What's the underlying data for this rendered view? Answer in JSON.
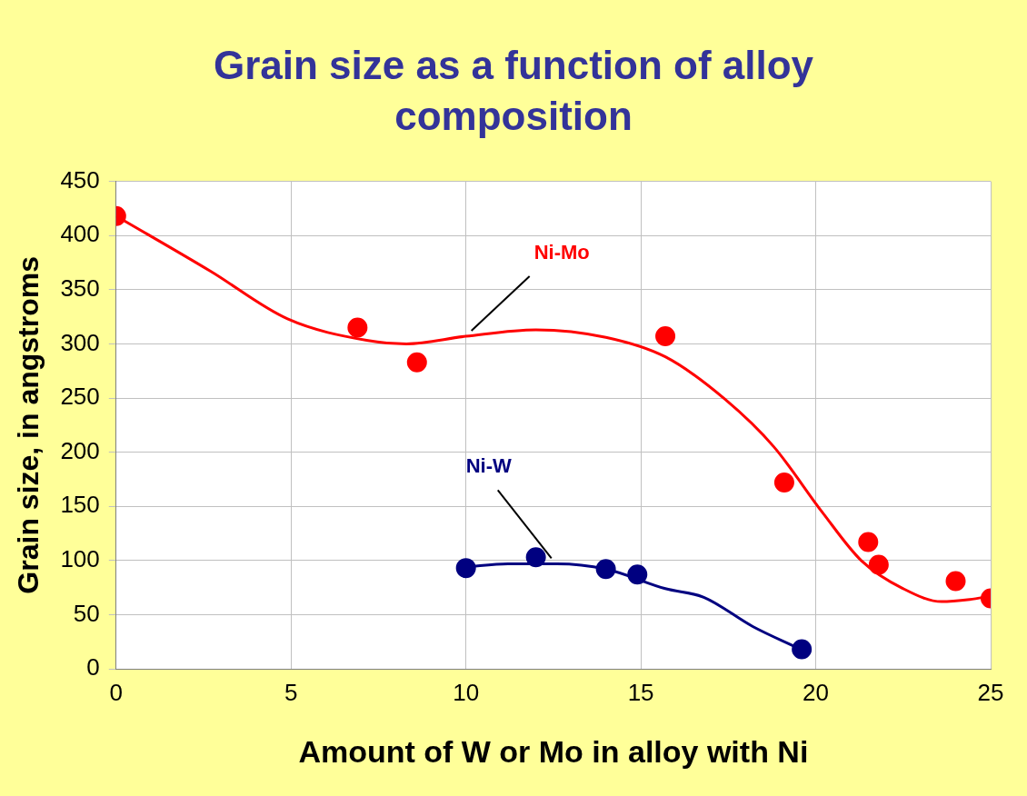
{
  "chart_data": {
    "type": "scatter",
    "title": "Grain size as a function of alloy composition",
    "xlabel": "Amount of W or Mo in alloy with Ni",
    "ylabel": "Grain size, in angstroms",
    "xlim": [
      0,
      25
    ],
    "xticks": [
      0,
      5,
      10,
      15,
      20,
      25
    ],
    "ylim": [
      0,
      450
    ],
    "yticks": [
      0,
      50,
      100,
      150,
      200,
      250,
      300,
      350,
      400,
      450
    ],
    "grid": true,
    "legend": false,
    "marker": "circle",
    "series": [
      {
        "type": "scatter",
        "color": "#ff0000",
        "x": [
          0,
          6.9,
          8.6,
          15.7,
          19.1,
          21.5,
          21.8,
          24.0,
          25.0
        ],
        "values": [
          418,
          315,
          283,
          307,
          172,
          117,
          96,
          81,
          65
        ]
      },
      {
        "type": "line",
        "name": "Ni-Mo",
        "color": "#ff0000",
        "marker": "none",
        "x": [
          0,
          2.7,
          4.9,
          7.2,
          8.3,
          10,
          12,
          14,
          15.7,
          17.4,
          18.8,
          20.2,
          21.3,
          22.5,
          23.6,
          24.4,
          25
        ],
        "values": [
          418,
          367,
          323,
          303,
          300,
          307,
          313,
          306,
          288,
          249,
          205,
          144,
          100,
          74,
          62,
          64,
          67
        ]
      },
      {
        "type": "scatter",
        "color": "#000080",
        "x": [
          10,
          12,
          14,
          14.9,
          19.6
        ],
        "values": [
          93,
          103,
          92,
          87,
          18
        ]
      },
      {
        "type": "line",
        "name": "Ni-W",
        "color": "#000080",
        "marker": "none",
        "x": [
          10,
          11.2,
          12.6,
          14,
          15.7,
          16.8,
          18.2,
          19.5
        ],
        "values": [
          94,
          97,
          97,
          92,
          74,
          66,
          39,
          19
        ]
      }
    ]
  }
}
